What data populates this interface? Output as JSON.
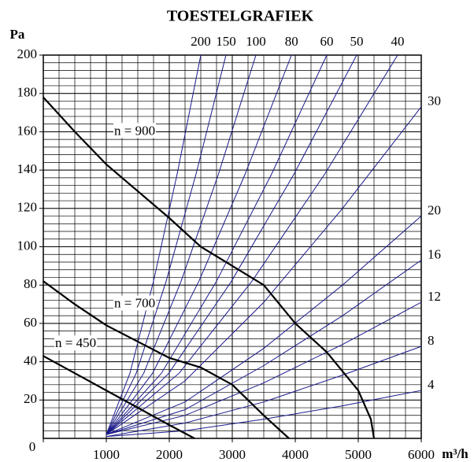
{
  "chart_data": {
    "type": "line",
    "title": "TOESTELGRAFIEK",
    "y_label": "Pa",
    "x_label": "m³/h",
    "xlim": [
      0,
      6000
    ],
    "ylim": [
      0,
      200
    ],
    "xticks": [
      0,
      1000,
      2000,
      3000,
      4000,
      5000,
      6000
    ],
    "yticks": [
      20,
      40,
      60,
      80,
      100,
      120,
      140,
      160,
      180,
      200
    ],
    "grid": true,
    "fan_curves": [
      {
        "name": "n = 900",
        "color": "#000000",
        "x": [
          0,
          500,
          1000,
          2000,
          2500,
          3500,
          4000,
          4500,
          5000,
          5200,
          5250
        ],
        "values": [
          178,
          160,
          143,
          115,
          100,
          80,
          60,
          45,
          25,
          10,
          0
        ]
      },
      {
        "name": "n = 700",
        "color": "#000000",
        "x": [
          0,
          500,
          1000,
          2000,
          2500,
          3000,
          3500,
          3900
        ],
        "values": [
          82,
          70,
          59,
          42,
          37,
          28,
          12,
          0
        ]
      },
      {
        "name": "n = 450",
        "color": "#000000",
        "x": [
          0,
          500,
          1000,
          1500,
          2000,
          2400
        ],
        "values": [
          43,
          34,
          25,
          16,
          7,
          0
        ]
      }
    ],
    "series": [
      {
        "name": "200",
        "color": "#1a1a8c",
        "x": [
          1000,
          1375,
          1750,
          2125,
          2500
        ],
        "values": [
          2,
          34,
          82,
          138,
          200
        ]
      },
      {
        "name": "150",
        "color": "#1a1a8c",
        "x": [
          1000,
          1475,
          1950,
          2425,
          2900
        ],
        "values": [
          2,
          34,
          82,
          138,
          200
        ]
      },
      {
        "name": "100",
        "color": "#1a1a8c",
        "x": [
          1000,
          1594,
          2188,
          2781,
          3375
        ],
        "values": [
          2,
          34,
          82,
          138,
          200
        ]
      },
      {
        "name": "80",
        "color": "#1a1a8c",
        "x": [
          1000,
          1735,
          2470,
          3205,
          3940
        ],
        "values": [
          2,
          34,
          82,
          138,
          200
        ]
      },
      {
        "name": "60",
        "color": "#1a1a8c",
        "x": [
          1000,
          1875,
          2750,
          3625,
          4500
        ],
        "values": [
          2,
          34,
          82,
          138,
          200
        ]
      },
      {
        "name": "50",
        "color": "#1a1a8c",
        "x": [
          1000,
          1994,
          2988,
          3981,
          4975
        ],
        "values": [
          2,
          34,
          82,
          138,
          200
        ]
      },
      {
        "name": "40",
        "color": "#1a1a8c",
        "x": [
          1000,
          2156,
          3313,
          4469,
          5625
        ],
        "values": [
          2,
          34,
          82,
          138,
          200
        ]
      },
      {
        "name": "30",
        "color": "#1a1a8c",
        "x": [
          1000,
          2250,
          3500,
          4750,
          6000
        ],
        "values": [
          2,
          30,
          71,
          120,
          173
        ]
      },
      {
        "name": "20",
        "color": "#1a1a8c",
        "x": [
          1000,
          2250,
          3500,
          4750,
          6000
        ],
        "values": [
          2,
          19,
          47,
          80,
          116
        ]
      },
      {
        "name": "16",
        "color": "#1a1a8c",
        "x": [
          1000,
          2250,
          3500,
          4750,
          6000
        ],
        "values": [
          2,
          15,
          38,
          64,
          93
        ]
      },
      {
        "name": "12",
        "color": "#1a1a8c",
        "x": [
          1000,
          2250,
          3500,
          4750,
          6000
        ],
        "values": [
          2,
          12,
          29,
          49,
          71
        ]
      },
      {
        "name": "8",
        "color": "#1a1a8c",
        "x": [
          1000,
          2250,
          3500,
          4750,
          6000
        ],
        "values": [
          1,
          8,
          19,
          33,
          48
        ]
      },
      {
        "name": "4",
        "color": "#1a1a8c",
        "x": [
          1000,
          2250,
          3500,
          4750,
          6000
        ],
        "values": [
          1,
          4,
          10,
          17,
          25
        ]
      }
    ]
  }
}
